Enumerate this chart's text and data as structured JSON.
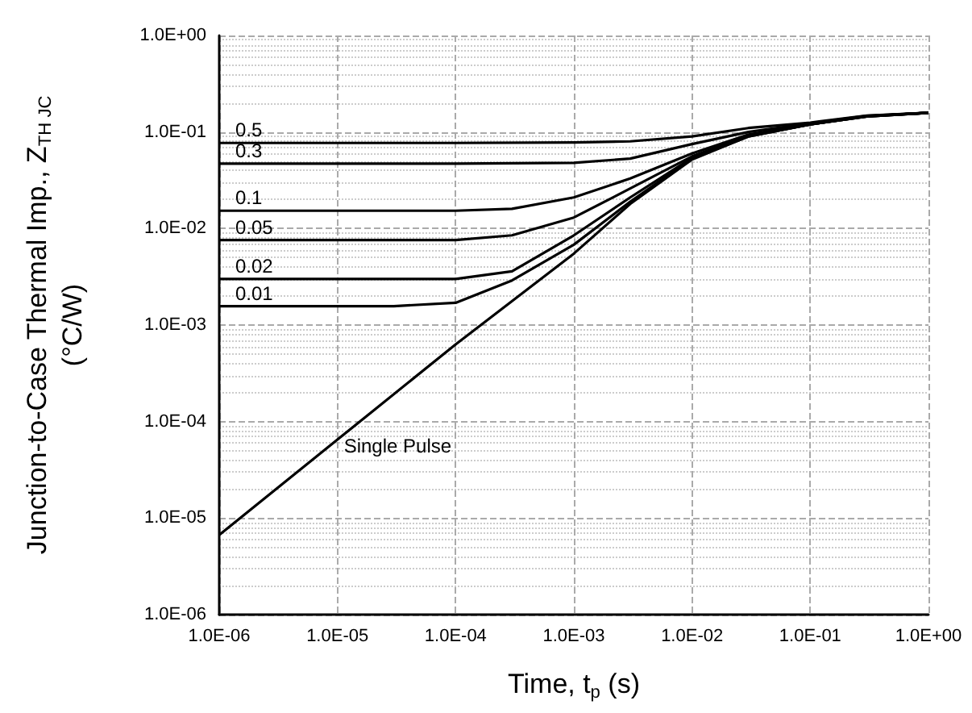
{
  "chart_data": {
    "type": "line",
    "xlabel": "Time, t$_{p}$ (s)",
    "ylabel": "Junction-to-Case Thermal Imp., Z$_{TH JC}$\n(°C/W)",
    "log": "xy",
    "grid": true,
    "legend": false,
    "marker": "none",
    "line_style": "solid",
    "xlim": [
      1e-06,
      1
    ],
    "ylim": [
      1e-06,
      1
    ],
    "xticks": [
      {
        "value": 1e-06,
        "label": "1.0E-06"
      },
      {
        "value": 1e-05,
        "label": "1.0E-05"
      },
      {
        "value": 0.0001,
        "label": "1.0E-04"
      },
      {
        "value": 0.001,
        "label": "1.0E-03"
      },
      {
        "value": 0.01,
        "label": "1.0E-02"
      },
      {
        "value": 0.1,
        "label": "1.0E-01"
      },
      {
        "value": 1,
        "label": "1.0E+00"
      }
    ],
    "yticks": [
      {
        "value": 1e-06,
        "label": "1.0E-06"
      },
      {
        "value": 1e-05,
        "label": "1.0E-05"
      },
      {
        "value": 0.0001,
        "label": "1.0E-04"
      },
      {
        "value": 0.001,
        "label": "1.0E-03"
      },
      {
        "value": 0.01,
        "label": "1.0E-02"
      },
      {
        "value": 0.1,
        "label": "1.0E-01"
      },
      {
        "value": 1,
        "label": "1.0E+00"
      }
    ],
    "series": [
      {
        "name": "0.5",
        "color": "#000000",
        "x": [
          1e-06,
          0.0001,
          0.001,
          0.003,
          0.01,
          0.03,
          0.1,
          0.3,
          1
        ],
        "values": [
          0.077,
          0.077,
          0.078,
          0.08,
          0.09,
          0.11,
          0.125,
          0.148,
          0.158
        ]
      },
      {
        "name": "0.3",
        "color": "#000000",
        "x": [
          1e-06,
          0.0001,
          0.001,
          0.003,
          0.01,
          0.03,
          0.1,
          0.3,
          1
        ],
        "values": [
          0.047,
          0.047,
          0.048,
          0.053,
          0.075,
          0.1,
          0.123,
          0.147,
          0.158
        ]
      },
      {
        "name": "0.1",
        "color": "#000000",
        "x": [
          1e-06,
          0.0001,
          0.0003,
          0.001,
          0.003,
          0.01,
          0.03,
          0.1,
          0.3,
          1
        ],
        "values": [
          0.0153,
          0.0153,
          0.016,
          0.021,
          0.033,
          0.06,
          0.094,
          0.121,
          0.146,
          0.158
        ]
      },
      {
        "name": "0.05",
        "color": "#000000",
        "x": [
          1e-06,
          0.0001,
          0.0003,
          0.001,
          0.003,
          0.01,
          0.03,
          0.1,
          0.3,
          1
        ],
        "values": [
          0.0076,
          0.0076,
          0.0085,
          0.013,
          0.026,
          0.056,
          0.092,
          0.12,
          0.146,
          0.158
        ]
      },
      {
        "name": "0.02",
        "color": "#000000",
        "x": [
          1e-06,
          0.0001,
          0.0003,
          0.001,
          0.003,
          0.01,
          0.03,
          0.1,
          0.3,
          1
        ],
        "values": [
          0.003,
          0.003,
          0.0036,
          0.0085,
          0.021,
          0.054,
          0.091,
          0.12,
          0.145,
          0.158
        ]
      },
      {
        "name": "0.01",
        "color": "#000000",
        "x": [
          1e-06,
          3e-05,
          0.0001,
          0.0003,
          0.001,
          0.003,
          0.01,
          0.03,
          0.1,
          0.3,
          1
        ],
        "values": [
          0.00157,
          0.00157,
          0.0017,
          0.0029,
          0.0068,
          0.019,
          0.053,
          0.09,
          0.12,
          0.145,
          0.158
        ]
      },
      {
        "name": "Single Pulse",
        "color": "#000000",
        "x": [
          1e-06,
          1e-05,
          0.0001,
          0.001,
          0.003,
          0.01,
          0.03,
          0.1,
          0.3,
          1
        ],
        "values": [
          6.7e-06,
          6.5e-05,
          0.00063,
          0.0055,
          0.018,
          0.052,
          0.09,
          0.12,
          0.145,
          0.158
        ]
      }
    ]
  }
}
